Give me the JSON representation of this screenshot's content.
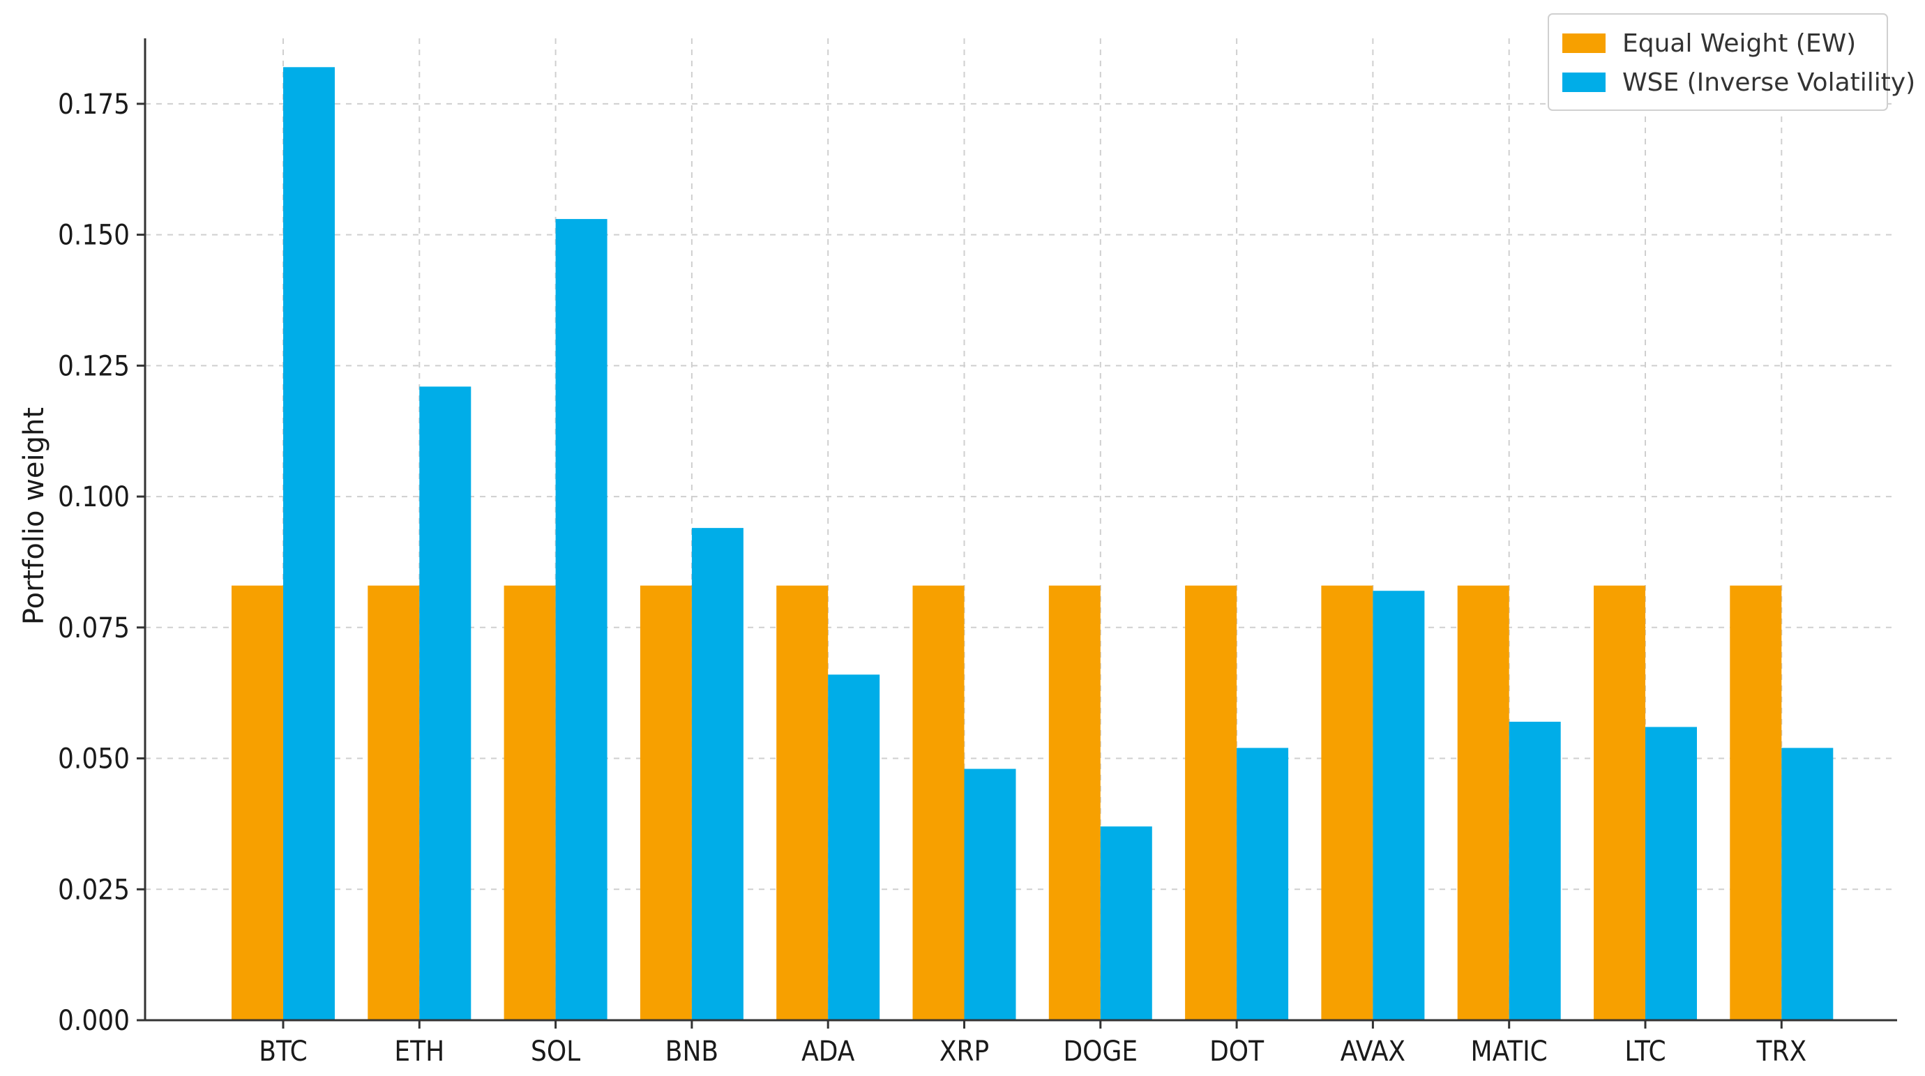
{
  "chart_data": {
    "type": "bar",
    "title": "",
    "xlabel": "",
    "ylabel": "Portfolio weight",
    "ylim": [
      0,
      0.1875
    ],
    "yticks": [
      "0.000",
      "0.025",
      "0.050",
      "0.075",
      "0.100",
      "0.125",
      "0.150",
      "0.175"
    ],
    "grid": true,
    "legend_position": "top-right",
    "categories": [
      "BTC",
      "ETH",
      "SOL",
      "BNB",
      "ADA",
      "XRP",
      "DOGE",
      "DOT",
      "AVAX",
      "MATIC",
      "LTC",
      "TRX"
    ],
    "series": [
      {
        "name": "Equal Weight (EW)",
        "color": "#f7a000",
        "values": [
          0.083,
          0.083,
          0.083,
          0.083,
          0.083,
          0.083,
          0.083,
          0.083,
          0.083,
          0.083,
          0.083,
          0.083
        ]
      },
      {
        "name": "WSE (Inverse Volatility)",
        "color": "#00ade8",
        "values": [
          0.182,
          0.121,
          0.153,
          0.094,
          0.066,
          0.048,
          0.037,
          0.052,
          0.082,
          0.057,
          0.056,
          0.052
        ]
      }
    ]
  }
}
